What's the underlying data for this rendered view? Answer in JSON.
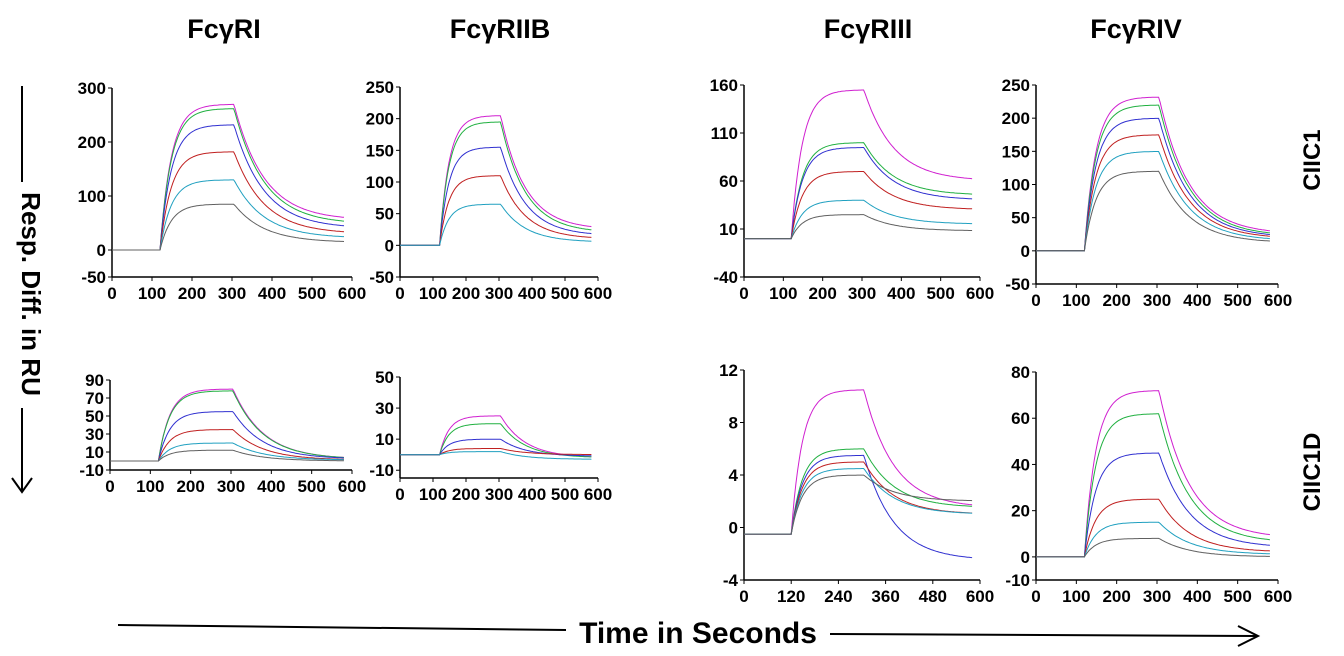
{
  "receptors": [
    "FcγRI",
    "FcγRIIB",
    "FcγRIII",
    "FcγRIV"
  ],
  "row_labels": [
    "CIIC1",
    "CIIC1D"
  ],
  "y_axis_label": "Resp. Diff. in RU",
  "x_axis_label": "Time in Seconds",
  "colors": [
    "#d020d0",
    "#20b040",
    "#3030d0",
    "#c02020",
    "#20a0c0",
    "#606060"
  ],
  "chart_data": [
    {
      "type": "line",
      "receptor": "FcγRI",
      "antibody": "CIIC1",
      "xlim": [
        0,
        600
      ],
      "ylim": [
        -50,
        300
      ],
      "xticks": [
        "0",
        "100",
        "200",
        "300",
        "400",
        "500",
        "600"
      ],
      "yticks": [
        "-50",
        "0",
        "100",
        "200",
        "300"
      ],
      "injection_start": 120,
      "injection_end": 305,
      "x_end": 580,
      "baseline": 0,
      "series": [
        {
          "plateau": 270,
          "end": 55
        },
        {
          "plateau": 262,
          "end": 48
        },
        {
          "plateau": 232,
          "end": 40
        },
        {
          "plateau": 182,
          "end": 30
        },
        {
          "plateau": 130,
          "end": 22
        },
        {
          "plateau": 85,
          "end": 14
        }
      ]
    },
    {
      "type": "line",
      "receptor": "FcγRIIB",
      "antibody": "CIIC1",
      "xlim": [
        0,
        600
      ],
      "ylim": [
        -50,
        250
      ],
      "xticks": [
        "0",
        "100",
        "200",
        "300",
        "400",
        "500",
        "600"
      ],
      "yticks": [
        "-50",
        "0",
        "50",
        "100",
        "150",
        "200",
        "250"
      ],
      "injection_start": 120,
      "injection_end": 305,
      "x_end": 580,
      "baseline": 0,
      "series": [
        {
          "plateau": 205,
          "end": 25
        },
        {
          "plateau": 195,
          "end": 20
        },
        {
          "plateau": 155,
          "end": 15
        },
        {
          "plateau": 110,
          "end": 10
        },
        {
          "plateau": 65,
          "end": 5
        }
      ]
    },
    {
      "type": "line",
      "receptor": "FcγRIII",
      "antibody": "CIIC1",
      "xlim": [
        0,
        600
      ],
      "ylim": [
        -40,
        160
      ],
      "xticks": [
        "0",
        "100",
        "200",
        "300",
        "400",
        "500",
        "600"
      ],
      "yticks": [
        "-40",
        "10",
        "60",
        "110",
        "160"
      ],
      "injection_start": 120,
      "injection_end": 305,
      "x_end": 580,
      "baseline": 0,
      "series": [
        {
          "plateau": 155,
          "end": 60
        },
        {
          "plateau": 100,
          "end": 45
        },
        {
          "plateau": 95,
          "end": 40
        },
        {
          "plateau": 70,
          "end": 30
        },
        {
          "plateau": 40,
          "end": 15
        },
        {
          "plateau": 25,
          "end": 8
        }
      ]
    },
    {
      "type": "line",
      "receptor": "FcγRIV",
      "antibody": "CIIC1",
      "xlim": [
        0,
        600
      ],
      "ylim": [
        -50,
        250
      ],
      "xticks": [
        "0",
        "100",
        "200",
        "300",
        "400",
        "500",
        "600"
      ],
      "yticks": [
        "-50",
        "0",
        "50",
        "100",
        "150",
        "200",
        "250"
      ],
      "injection_start": 120,
      "injection_end": 305,
      "x_end": 580,
      "baseline": 0,
      "series": [
        {
          "plateau": 232,
          "end": 25
        },
        {
          "plateau": 220,
          "end": 22
        },
        {
          "plateau": 200,
          "end": 20
        },
        {
          "plateau": 175,
          "end": 18
        },
        {
          "plateau": 150,
          "end": 15
        },
        {
          "plateau": 120,
          "end": 12
        }
      ]
    },
    {
      "type": "line",
      "receptor": "FcγRI",
      "antibody": "CIIC1D",
      "xlim": [
        0,
        600
      ],
      "ylim": [
        -10,
        90
      ],
      "xticks": [
        "0",
        "100",
        "200",
        "300",
        "400",
        "500",
        "600"
      ],
      "yticks": [
        "-10",
        "10",
        "30",
        "50",
        "70",
        "90"
      ],
      "injection_start": 120,
      "injection_end": 305,
      "x_end": 580,
      "baseline": 0,
      "series": [
        {
          "plateau": 80,
          "end": 2
        },
        {
          "plateau": 78,
          "end": 2
        },
        {
          "plateau": 55,
          "end": 2
        },
        {
          "plateau": 35,
          "end": 1
        },
        {
          "plateau": 20,
          "end": 1
        },
        {
          "plateau": 12,
          "end": 0
        }
      ]
    },
    {
      "type": "line",
      "receptor": "FcγRIIB",
      "antibody": "CIIC1D",
      "xlim": [
        0,
        600
      ],
      "ylim": [
        -15,
        50
      ],
      "xticks": [
        "0",
        "100",
        "200",
        "300",
        "400",
        "500",
        "600"
      ],
      "yticks": [
        "-10",
        "10",
        "30",
        "50"
      ],
      "injection_start": 120,
      "injection_end": 305,
      "x_end": 580,
      "baseline": 0,
      "series": [
        {
          "plateau": 25,
          "end": -2
        },
        {
          "plateau": 20,
          "end": -2
        },
        {
          "plateau": 10,
          "end": -1
        },
        {
          "plateau": 4,
          "end": 0
        },
        {
          "plateau": 2,
          "end": -3
        }
      ]
    },
    {
      "type": "line",
      "receptor": "FcγRIII",
      "antibody": "CIIC1D",
      "xlim": [
        0,
        600
      ],
      "ylim": [
        -4,
        12
      ],
      "xticks": [
        "0",
        "120",
        "240",
        "360",
        "480",
        "600"
      ],
      "yticks": [
        "-4",
        "0",
        "4",
        "8",
        "12"
      ],
      "injection_start": 120,
      "injection_end": 305,
      "x_end": 580,
      "baseline": -0.5,
      "series": [
        {
          "plateau": 10.5,
          "end": 1.5
        },
        {
          "plateau": 6,
          "end": 1.5
        },
        {
          "plateau": 5.5,
          "end": -2.5
        },
        {
          "plateau": 5,
          "end": 1
        },
        {
          "plateau": 4.5,
          "end": 1
        },
        {
          "plateau": 4,
          "end": 2
        }
      ]
    },
    {
      "type": "line",
      "receptor": "FcγRIV",
      "antibody": "CIIC1D",
      "xlim": [
        0,
        600
      ],
      "ylim": [
        -10,
        80
      ],
      "xticks": [
        "0",
        "100",
        "200",
        "300",
        "400",
        "500",
        "600"
      ],
      "yticks": [
        "-10",
        "0",
        "20",
        "40",
        "60",
        "80"
      ],
      "injection_start": 120,
      "injection_end": 305,
      "x_end": 580,
      "baseline": 0,
      "series": [
        {
          "plateau": 72,
          "end": 8
        },
        {
          "plateau": 62,
          "end": 6
        },
        {
          "plateau": 45,
          "end": 4
        },
        {
          "plateau": 25,
          "end": 2
        },
        {
          "plateau": 15,
          "end": 1
        },
        {
          "plateau": 8,
          "end": 0
        }
      ]
    }
  ]
}
